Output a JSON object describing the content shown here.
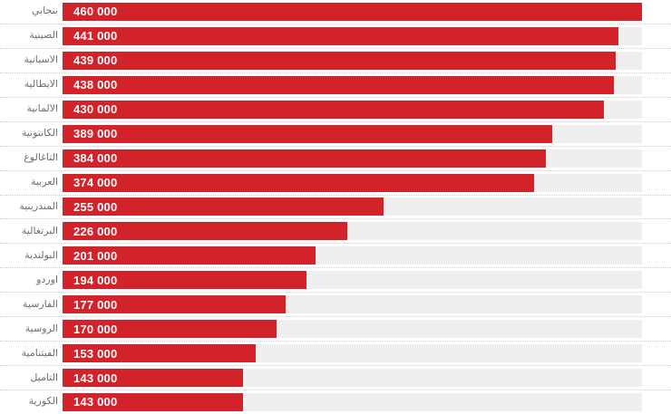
{
  "page": {
    "background": "#ffffff"
  },
  "chart_data": {
    "type": "bar",
    "orientation": "horizontal",
    "title": "",
    "xlabel": "",
    "ylabel": "",
    "grid": false,
    "legend": null,
    "xlim": [
      0,
      460000
    ],
    "categories": [
      "بنجابي",
      "الصينية",
      "الاسبانية",
      "الايطالية",
      "الألمانية",
      "الكانتونية",
      "التاغالوغ",
      "العربية",
      "المندرينية",
      "البرتغالية",
      "البولندية",
      "اوردو",
      "الفارسية",
      "الروسية",
      "الفيتنامية",
      "التاميل",
      "الكورية"
    ],
    "values": [
      460000,
      441000,
      439000,
      438000,
      430000,
      389000,
      384000,
      374000,
      255000,
      226000,
      201000,
      194000,
      177000,
      170000,
      153000,
      143000,
      143000
    ],
    "value_labels": [
      "460 000",
      "441 000",
      "439 000",
      "438 000",
      "430 000",
      "389 000",
      "384 000",
      "374 000",
      "255 000",
      "226 000",
      "201 000",
      "194 000",
      "177 000",
      "170 000",
      "153 000",
      "143 000",
      "143 000"
    ],
    "colors": {
      "bar": "#d2232a",
      "row_background": "#efefef",
      "category_label": "#6f6f6f",
      "value_text": "#ffffff",
      "separator": "#cccccc"
    }
  }
}
